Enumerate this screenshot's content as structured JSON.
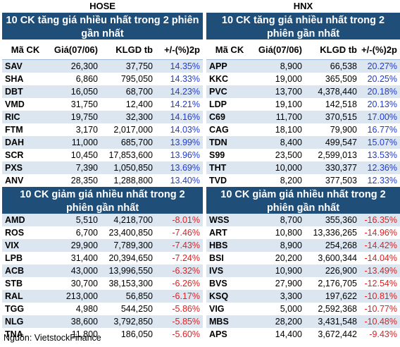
{
  "hose": {
    "exchange": "HOSE",
    "gainers_title": "10 CK tăng giá nhiều nhất trong 2 phiên gần nhất",
    "losers_title": "10 CK giảm giá nhiều nhất trong 2 phiên gần nhất",
    "headers": [
      "Mã CK",
      "Giá(07/06)",
      "KLGD tb",
      "+/-(%)2p"
    ],
    "gainers": [
      [
        "SAV",
        "26,300",
        "37,750",
        "14.35%"
      ],
      [
        "SHA",
        "6,860",
        "795,050",
        "14.33%"
      ],
      [
        "DBT",
        "16,050",
        "68,700",
        "14.23%"
      ],
      [
        "VMD",
        "31,750",
        "12,400",
        "14.21%"
      ],
      [
        "RIC",
        "19,750",
        "32,300",
        "14.16%"
      ],
      [
        "FTM",
        "3,170",
        "2,017,000",
        "14.03%"
      ],
      [
        "DAH",
        "11,000",
        "685,700",
        "13.99%"
      ],
      [
        "SCR",
        "10,450",
        "17,853,600",
        "13.96%"
      ],
      [
        "PXS",
        "7,390",
        "1,050,850",
        "13.69%"
      ],
      [
        "ANV",
        "28,350",
        "1,288,800",
        "13.40%"
      ]
    ],
    "losers": [
      [
        "AMD",
        "5,510",
        "4,218,700",
        "-8.01%"
      ],
      [
        "ROS",
        "6,700",
        "23,400,850",
        "-7.46%"
      ],
      [
        "VIX",
        "29,900",
        "7,789,300",
        "-7.43%"
      ],
      [
        "LPB",
        "31,400",
        "20,394,650",
        "-7.24%"
      ],
      [
        "ACB",
        "43,000",
        "13,996,550",
        "-6.32%"
      ],
      [
        "STB",
        "30,700",
        "38,153,300",
        "-6.26%"
      ],
      [
        "RAL",
        "213,000",
        "56,850",
        "-6.17%"
      ],
      [
        "TGG",
        "4,980",
        "544,250",
        "-5.86%"
      ],
      [
        "NLG",
        "38,600",
        "3,792,850",
        "-5.85%"
      ],
      [
        "TNA",
        "11,800",
        "186,050",
        "-5.60%"
      ]
    ]
  },
  "hnx": {
    "exchange": "HNX",
    "gainers_title": "10 CK tăng giá nhiều nhất trong 2 phiên gần nhất",
    "losers_title": "10 CK giảm giá nhiều nhất trong 2 phiên gần nhất",
    "headers": [
      "Mã CK",
      "Giá(07/06)",
      "KLGD tb",
      "+/-(%)2p"
    ],
    "gainers": [
      [
        "APP",
        "8,900",
        "66,538",
        "20.27%"
      ],
      [
        "KKC",
        "19,000",
        "365,509",
        "20.25%"
      ],
      [
        "PVC",
        "13,700",
        "4,378,440",
        "20.18%"
      ],
      [
        "LDP",
        "19,100",
        "142,518",
        "20.13%"
      ],
      [
        "C69",
        "11,700",
        "370,515",
        "17.00%"
      ],
      [
        "CAG",
        "18,100",
        "79,900",
        "16.77%"
      ],
      [
        "TDN",
        "8,400",
        "499,547",
        "15.07%"
      ],
      [
        "S99",
        "23,500",
        "2,599,013",
        "13.53%"
      ],
      [
        "THT",
        "10,000",
        "330,377",
        "12.36%"
      ],
      [
        "TVD",
        "8,200",
        "377,503",
        "12.33%"
      ]
    ],
    "losers": [
      [
        "WSS",
        "8,700",
        "355,360",
        "-16.35%"
      ],
      [
        "ART",
        "10,800",
        "13,336,265",
        "-14.96%"
      ],
      [
        "HBS",
        "8,900",
        "254,268",
        "-14.42%"
      ],
      [
        "BSI",
        "20,200",
        "3,600,344",
        "-14.04%"
      ],
      [
        "IVS",
        "10,900",
        "226,900",
        "-13.49%"
      ],
      [
        "BVS",
        "27,900",
        "2,176,705",
        "-12.54%"
      ],
      [
        "KSQ",
        "3,300",
        "197,622",
        "-10.81%"
      ],
      [
        "VIG",
        "5,000",
        "2,592,368",
        "-10.77%"
      ],
      [
        "MBS",
        "28,200",
        "3,431,548",
        "-10.48%"
      ],
      [
        "APS",
        "14,400",
        "3,672,442",
        "-9.43%"
      ]
    ]
  },
  "source": "Nguồn: VietstockFinance",
  "colors": {
    "header_bg": "#1f4e79",
    "alt_row": "#dce6f1",
    "up": "#1f3bd6",
    "down": "#e02020"
  }
}
